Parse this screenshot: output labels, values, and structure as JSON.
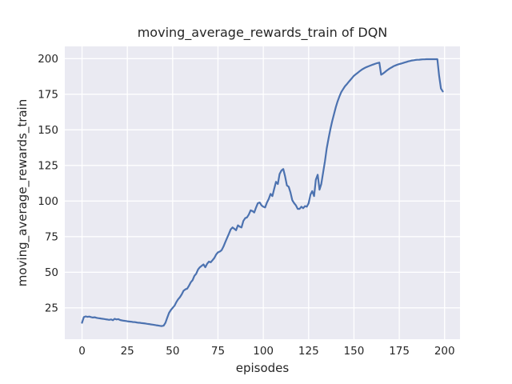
{
  "chart_data": {
    "type": "line",
    "title": "moving_average_rewards_train of DQN",
    "xlabel": "episodes",
    "ylabel": "moving_average_rewards_train",
    "x_ticks": [
      0,
      25,
      50,
      75,
      100,
      125,
      150,
      175,
      200
    ],
    "y_ticks": [
      25,
      50,
      75,
      100,
      125,
      150,
      175,
      200
    ],
    "xlim": [
      -9.5,
      208.5
    ],
    "ylim": [
      3,
      208.6
    ],
    "grid": true,
    "legend": "none",
    "style": {
      "figure_background": "#ffffff",
      "axes_background": "#eaeaf2",
      "grid_color": "#ffffff",
      "line_color": "#4c72b0",
      "text_color": "#262626",
      "line_width": 2.2,
      "grid_width": 1.3
    },
    "series": [
      {
        "name": "moving_average_rewards_train",
        "points": [
          [
            0,
            14.5
          ],
          [
            1,
            18.5
          ],
          [
            2,
            19.0
          ],
          [
            3,
            18.7
          ],
          [
            4,
            18.9
          ],
          [
            5,
            18.5
          ],
          [
            6,
            18.2
          ],
          [
            7,
            18.4
          ],
          [
            8,
            18.0
          ],
          [
            9,
            17.8
          ],
          [
            10,
            17.6
          ],
          [
            11,
            17.4
          ],
          [
            12,
            17.2
          ],
          [
            13,
            17.0
          ],
          [
            14,
            16.8
          ],
          [
            15,
            16.6
          ],
          [
            16,
            16.9
          ],
          [
            17,
            16.3
          ],
          [
            18,
            17.3
          ],
          [
            19,
            16.9
          ],
          [
            20,
            17.1
          ],
          [
            21,
            16.5
          ],
          [
            22,
            16.2
          ],
          [
            23,
            16.0
          ],
          [
            24,
            15.8
          ],
          [
            25,
            15.6
          ],
          [
            26,
            15.4
          ],
          [
            27,
            15.3
          ],
          [
            28,
            15.1
          ],
          [
            29,
            15.0
          ],
          [
            30,
            14.8
          ],
          [
            31,
            14.6
          ],
          [
            32,
            14.5
          ],
          [
            33,
            14.3
          ],
          [
            34,
            14.2
          ],
          [
            35,
            14.0
          ],
          [
            36,
            13.8
          ],
          [
            37,
            13.6
          ],
          [
            38,
            13.4
          ],
          [
            39,
            13.2
          ],
          [
            40,
            13.0
          ],
          [
            41,
            12.8
          ],
          [
            42,
            12.6
          ],
          [
            43,
            12.4
          ],
          [
            44,
            12.2
          ],
          [
            45,
            12.5
          ],
          [
            46,
            14.5
          ],
          [
            47,
            18.0
          ],
          [
            48,
            21.5
          ],
          [
            49,
            23.5
          ],
          [
            50,
            25.0
          ],
          [
            51,
            26.5
          ],
          [
            52,
            29.0
          ],
          [
            53,
            31.0
          ],
          [
            54,
            32.5
          ],
          [
            55,
            34.5
          ],
          [
            56,
            37.0
          ],
          [
            57,
            38.0
          ],
          [
            58,
            38.5
          ],
          [
            59,
            40.5
          ],
          [
            60,
            43.0
          ],
          [
            61,
            44.5
          ],
          [
            62,
            47.5
          ],
          [
            63,
            49.0
          ],
          [
            64,
            52.0
          ],
          [
            65,
            53.5
          ],
          [
            66,
            54.5
          ],
          [
            67,
            55.5
          ],
          [
            68,
            53.5
          ],
          [
            69,
            56.0
          ],
          [
            70,
            57.5
          ],
          [
            71,
            57.0
          ],
          [
            72,
            58.5
          ],
          [
            73,
            60.0
          ],
          [
            74,
            62.5
          ],
          [
            75,
            64.0
          ],
          [
            76,
            64.5
          ],
          [
            77,
            65.5
          ],
          [
            78,
            68.0
          ],
          [
            79,
            71.0
          ],
          [
            80,
            74.0
          ],
          [
            81,
            77.0
          ],
          [
            82,
            80.0
          ],
          [
            83,
            81.5
          ],
          [
            84,
            80.5
          ],
          [
            85,
            79.5
          ],
          [
            86,
            83.0
          ],
          [
            87,
            82.0
          ],
          [
            88,
            81.5
          ],
          [
            89,
            86.0
          ],
          [
            90,
            88.0
          ],
          [
            91,
            88.5
          ],
          [
            92,
            90.5
          ],
          [
            93,
            93.5
          ],
          [
            94,
            93.0
          ],
          [
            95,
            92.0
          ],
          [
            96,
            95.5
          ],
          [
            97,
            98.5
          ],
          [
            98,
            99.0
          ],
          [
            99,
            97.0
          ],
          [
            100,
            96.0
          ],
          [
            101,
            95.5
          ],
          [
            102,
            99.0
          ],
          [
            103,
            101.5
          ],
          [
            104,
            105.0
          ],
          [
            105,
            103.5
          ],
          [
            106,
            108.5
          ],
          [
            107,
            113.5
          ],
          [
            108,
            112.0
          ],
          [
            109,
            119.0
          ],
          [
            110,
            121.5
          ],
          [
            111,
            122.5
          ],
          [
            112,
            117.5
          ],
          [
            113,
            111.0
          ],
          [
            114,
            110.0
          ],
          [
            115,
            106.0
          ],
          [
            116,
            100.5
          ],
          [
            117,
            98.5
          ],
          [
            118,
            97.0
          ],
          [
            119,
            94.5
          ],
          [
            120,
            94.5
          ],
          [
            121,
            96.0
          ],
          [
            122,
            95.0
          ],
          [
            123,
            96.5
          ],
          [
            124,
            96.0
          ],
          [
            125,
            98.5
          ],
          [
            126,
            104.5
          ],
          [
            127,
            107.0
          ],
          [
            128,
            103.5
          ],
          [
            129,
            115.0
          ],
          [
            130,
            118.5
          ],
          [
            131,
            108.0
          ],
          [
            132,
            112.0
          ],
          [
            133,
            120.0
          ],
          [
            134,
            128.0
          ],
          [
            135,
            137.0
          ],
          [
            136,
            144.0
          ],
          [
            137,
            150.5
          ],
          [
            138,
            156.0
          ],
          [
            139,
            161.0
          ],
          [
            140,
            166.0
          ],
          [
            141,
            170.0
          ],
          [
            142,
            173.5
          ],
          [
            143,
            176.5
          ],
          [
            144,
            178.5
          ],
          [
            145,
            180.5
          ],
          [
            146,
            182.0
          ],
          [
            147,
            183.5
          ],
          [
            148,
            185.0
          ],
          [
            149,
            186.5
          ],
          [
            150,
            188.0
          ],
          [
            151,
            189.0
          ],
          [
            152,
            190.0
          ],
          [
            153,
            191.0
          ],
          [
            154,
            192.0
          ],
          [
            155,
            192.8
          ],
          [
            156,
            193.5
          ],
          [
            157,
            194.1
          ],
          [
            158,
            194.6
          ],
          [
            159,
            195.1
          ],
          [
            160,
            195.6
          ],
          [
            161,
            196.1
          ],
          [
            162,
            196.5
          ],
          [
            163,
            196.9
          ],
          [
            164,
            197.2
          ],
          [
            165,
            188.7
          ],
          [
            166,
            189.5
          ],
          [
            167,
            190.5
          ],
          [
            168,
            191.5
          ],
          [
            169,
            192.5
          ],
          [
            170,
            193.3
          ],
          [
            171,
            194.0
          ],
          [
            172,
            194.8
          ],
          [
            173,
            195.3
          ],
          [
            174,
            195.8
          ],
          [
            175,
            196.2
          ],
          [
            176,
            196.5
          ],
          [
            177,
            196.9
          ],
          [
            178,
            197.3
          ],
          [
            179,
            197.7
          ],
          [
            180,
            198.1
          ],
          [
            181,
            198.4
          ],
          [
            182,
            198.7
          ],
          [
            183,
            198.9
          ],
          [
            184,
            199.1
          ],
          [
            185,
            199.2
          ],
          [
            186,
            199.3
          ],
          [
            187,
            199.4
          ],
          [
            188,
            199.5
          ],
          [
            189,
            199.5
          ],
          [
            190,
            199.6
          ],
          [
            191,
            199.6
          ],
          [
            192,
            199.6
          ],
          [
            193,
            199.6
          ],
          [
            194,
            199.6
          ],
          [
            195,
            199.6
          ],
          [
            196,
            199.6
          ],
          [
            197,
            188.0
          ],
          [
            198,
            179.0
          ],
          [
            199,
            177.0
          ]
        ]
      }
    ]
  }
}
